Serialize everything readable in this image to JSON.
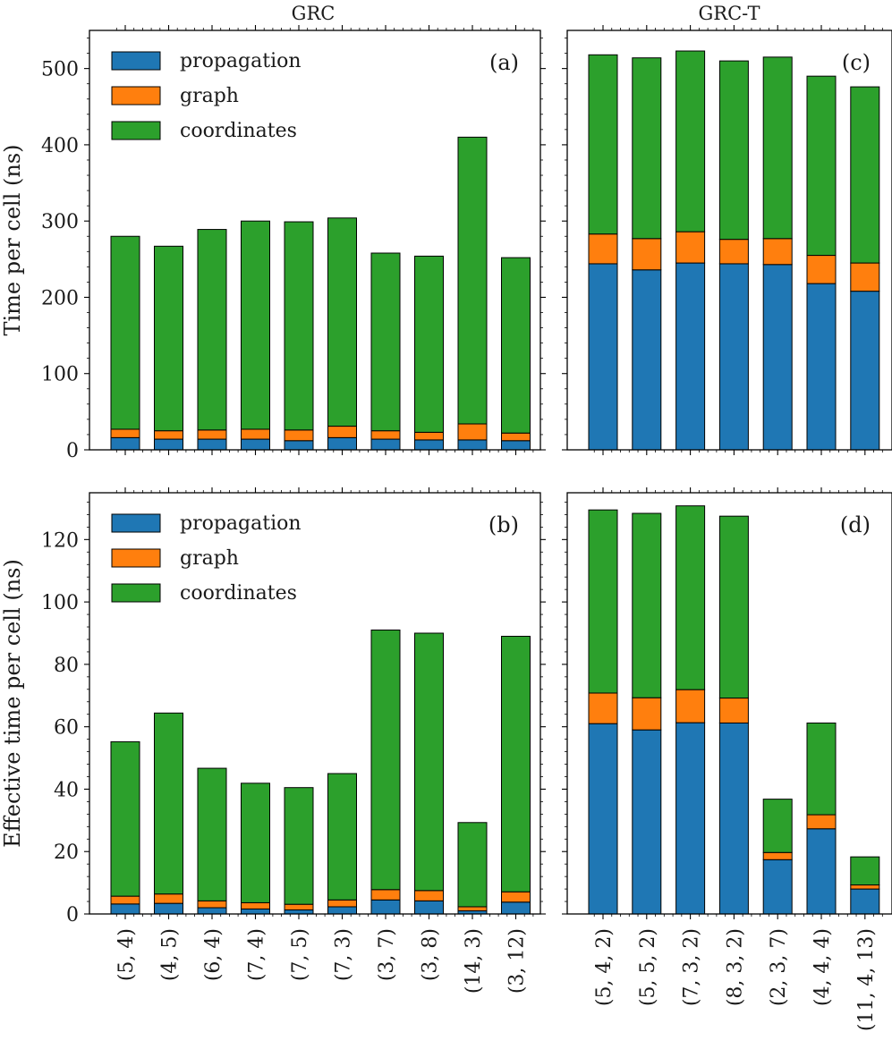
{
  "figure": {
    "col_titles": [
      "GRC",
      "GRC-T"
    ],
    "series": [
      {
        "key": "propagation",
        "name": "propagation",
        "color": "#1f77b4"
      },
      {
        "key": "graph",
        "name": "graph",
        "color": "#ff7f0e"
      },
      {
        "key": "coordinates",
        "name": "coordinates",
        "color": "#2ca02c"
      }
    ]
  },
  "chart_data": [
    {
      "id": "a",
      "type": "bar",
      "stacked": true,
      "tag": "(a)",
      "title": "GRC",
      "ylabel": "Time per cell (ns)",
      "xlabel": "",
      "ylim": [
        0,
        550
      ],
      "yticks": [
        0,
        100,
        200,
        300,
        400,
        500
      ],
      "legend": true,
      "legend_position": "top-left",
      "categories": [
        "(5, 4)",
        "(4, 5)",
        "(6, 4)",
        "(7, 4)",
        "(7, 5)",
        "(7, 3)",
        "(3, 7)",
        "(3, 8)",
        "(14, 3)",
        "(3, 12)"
      ],
      "series": [
        {
          "name": "propagation",
          "values": [
            16,
            14,
            14,
            14,
            12,
            16,
            14,
            13,
            13,
            12
          ]
        },
        {
          "name": "graph",
          "values": [
            11,
            11,
            12,
            13,
            14,
            15,
            11,
            10,
            21,
            10
          ]
        },
        {
          "name": "coordinates",
          "values": [
            253,
            242,
            263,
            273,
            273,
            273,
            233,
            231,
            376,
            230
          ]
        }
      ]
    },
    {
      "id": "b",
      "type": "bar",
      "stacked": true,
      "tag": "(b)",
      "title": "",
      "ylabel": "Effective time per cell (ns)",
      "xlabel": "",
      "ylim": [
        0,
        135
      ],
      "yticks": [
        0,
        20,
        40,
        60,
        80,
        100,
        120
      ],
      "legend": true,
      "legend_position": "top-left",
      "categories": [
        "(5, 4)",
        "(4, 5)",
        "(6, 4)",
        "(7, 4)",
        "(7, 5)",
        "(7, 3)",
        "(3, 7)",
        "(3, 8)",
        "(14, 3)",
        "(3, 12)"
      ],
      "series": [
        {
          "name": "propagation",
          "values": [
            3.2,
            3.4,
            2.0,
            1.6,
            1.3,
            2.3,
            4.5,
            4.2,
            1.0,
            3.8
          ]
        },
        {
          "name": "graph",
          "values": [
            2.5,
            3.0,
            2.2,
            2.0,
            1.8,
            2.2,
            3.3,
            3.3,
            1.3,
            3.3
          ]
        },
        {
          "name": "coordinates",
          "values": [
            49.5,
            58.0,
            42.5,
            38.3,
            37.4,
            40.5,
            83.2,
            82.5,
            27.0,
            81.9
          ]
        }
      ]
    },
    {
      "id": "c",
      "type": "bar",
      "stacked": true,
      "tag": "(c)",
      "title": "GRC-T",
      "ylabel": "",
      "xlabel": "",
      "ylim": [
        0,
        550
      ],
      "yticks": [
        0,
        100,
        200,
        300,
        400,
        500
      ],
      "legend": false,
      "categories": [
        "(5, 4, 2)",
        "(5, 5, 2)",
        "(7, 3, 2)",
        "(8, 3, 2)",
        "(2, 3, 7)",
        "(4, 4, 4)",
        "(11, 4, 13)"
      ],
      "series": [
        {
          "name": "propagation",
          "values": [
            244,
            236,
            245,
            244,
            243,
            218,
            208
          ]
        },
        {
          "name": "graph",
          "values": [
            39,
            41,
            41,
            32,
            34,
            37,
            37
          ]
        },
        {
          "name": "coordinates",
          "values": [
            235,
            237,
            237,
            234,
            238,
            235,
            231
          ]
        }
      ]
    },
    {
      "id": "d",
      "type": "bar",
      "stacked": true,
      "tag": "(d)",
      "title": "",
      "ylabel": "",
      "xlabel": "",
      "ylim": [
        0,
        135
      ],
      "yticks": [
        0,
        20,
        40,
        60,
        80,
        100,
        120
      ],
      "legend": false,
      "categories": [
        "(5, 4, 2)",
        "(5, 5, 2)",
        "(7, 3, 2)",
        "(8, 3, 2)",
        "(2, 3, 7)",
        "(4, 4, 4)",
        "(11, 4, 13)"
      ],
      "series": [
        {
          "name": "propagation",
          "values": [
            61.0,
            59.0,
            61.3,
            61.2,
            17.4,
            27.3,
            8.0
          ]
        },
        {
          "name": "graph",
          "values": [
            9.8,
            10.3,
            10.6,
            8.0,
            2.3,
            4.5,
            1.3
          ]
        },
        {
          "name": "coordinates",
          "values": [
            58.7,
            59.1,
            58.9,
            58.3,
            17.1,
            29.4,
            9.0
          ]
        }
      ]
    }
  ]
}
